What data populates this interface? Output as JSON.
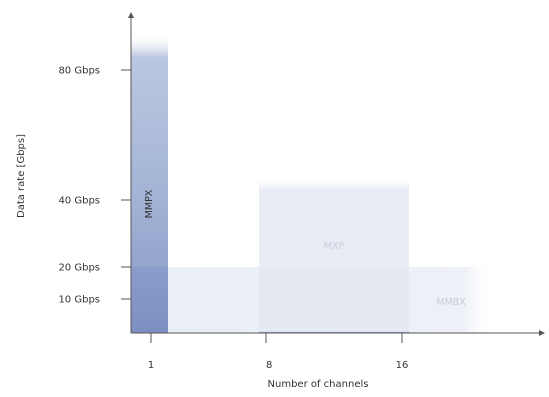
{
  "chart_data": {
    "type": "bar",
    "xlabel": "Number of channels",
    "ylabel": "Data rate [Gbps]",
    "x_ticks": [
      {
        "value": 1,
        "label": "1"
      },
      {
        "value": 8,
        "label": "8"
      },
      {
        "value": 16,
        "label": "16"
      }
    ],
    "y_ticks": [
      {
        "value": 10,
        "label": "10 Gbps"
      },
      {
        "value": 20,
        "label": "20 Gbps"
      },
      {
        "value": 40,
        "label": "40 Gbps"
      },
      {
        "value": 80,
        "label": "80 Gbps"
      }
    ],
    "xlim": [
      0,
      23
    ],
    "ylim": [
      0,
      90
    ],
    "series": [
      {
        "name": "MMBX",
        "x_range": [
          1,
          20
        ],
        "y_max": 20,
        "color": "#dfe5f1",
        "opacity": 0.75
      },
      {
        "name": "MXP",
        "x_range": [
          7.5,
          15.5
        ],
        "y_max": 47,
        "color": "#e5e9f3",
        "opacity": 0.85
      },
      {
        "name": "MMPX",
        "x_range": [
          0,
          1.5
        ],
        "y_max": 90,
        "color": "#8c9fcb",
        "opacity": 1.0
      }
    ],
    "accent_colors": {
      "axis": "#555555",
      "mmpx_dark": "#7b8fc2",
      "mmpx_light": "#b4c2dd"
    }
  }
}
